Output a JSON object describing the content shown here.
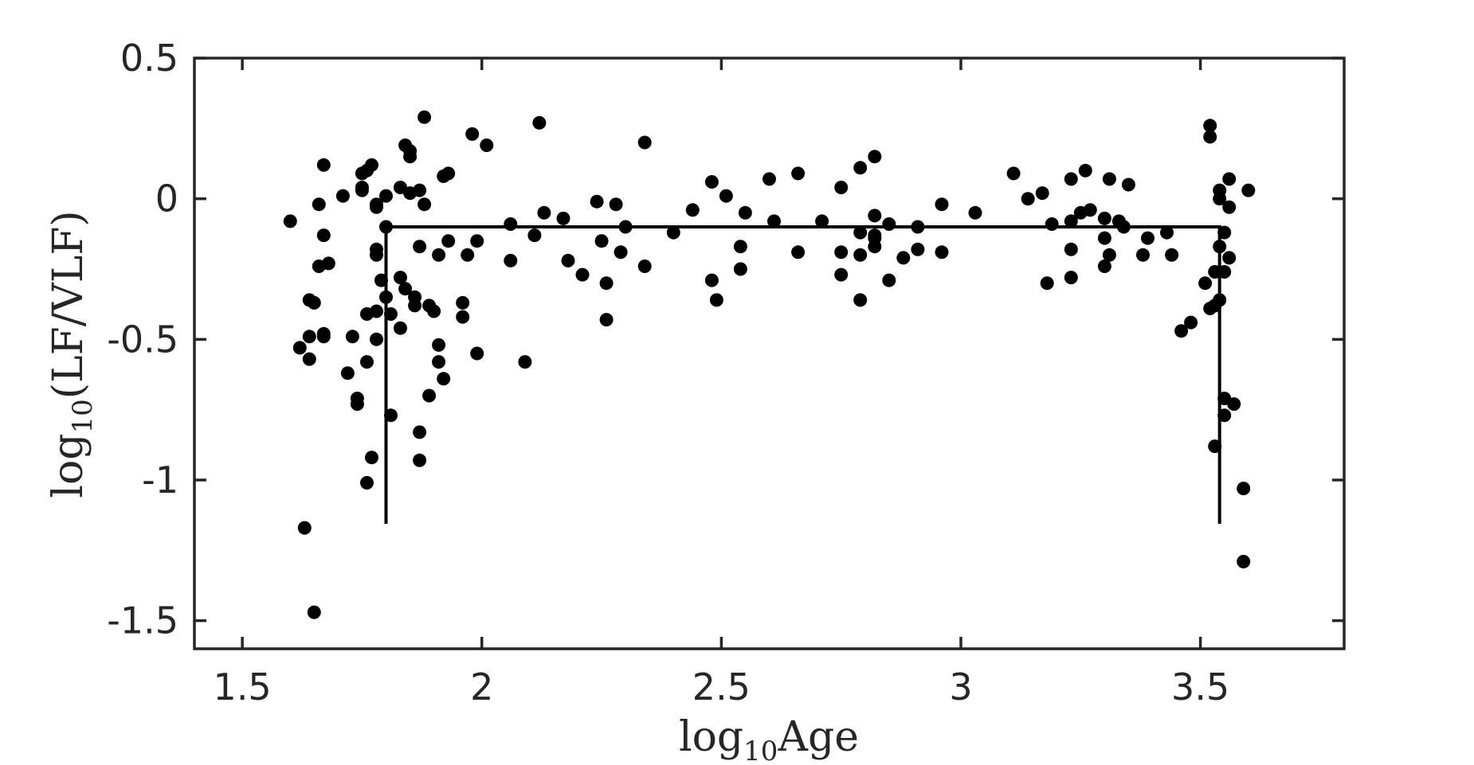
{
  "chart_data": {
    "type": "scatter",
    "title": "",
    "xlabel": {
      "base": "log",
      "sub": "10",
      "rest": "Age"
    },
    "ylabel": {
      "base": "log",
      "sub": "10",
      "rest": "(LF/VLF)"
    },
    "xlim": [
      1.4,
      3.8
    ],
    "ylim": [
      -1.6,
      0.5
    ],
    "grid": false,
    "xticks": [
      1.5,
      2,
      2.5,
      3,
      3.5
    ],
    "xtick_labels": [
      "1.5",
      "2",
      "2.5",
      "3",
      "3.5"
    ],
    "yticks": [
      0.5,
      0,
      -0.5,
      -1,
      -1.5
    ],
    "ytick_labels": [
      "0.5",
      "0",
      "-0.5",
      "-1",
      "-1.5"
    ],
    "fit_line": {
      "segments": [
        [
          [
            1.8,
            -1.15
          ],
          [
            1.8,
            -0.1
          ]
        ],
        [
          [
            1.8,
            -0.1
          ],
          [
            3.54,
            -0.1
          ]
        ],
        [
          [
            3.54,
            -0.1
          ],
          [
            3.54,
            -1.15
          ]
        ]
      ]
    },
    "points": [
      [
        1.6,
        -0.08
      ],
      [
        1.62,
        -0.53
      ],
      [
        1.63,
        -1.17
      ],
      [
        1.64,
        -0.36
      ],
      [
        1.64,
        -0.49
      ],
      [
        1.64,
        -0.57
      ],
      [
        1.65,
        -1.47
      ],
      [
        1.65,
        -0.37
      ],
      [
        1.66,
        -0.24
      ],
      [
        1.66,
        -0.02
      ],
      [
        1.67,
        0.12
      ],
      [
        1.67,
        -0.13
      ],
      [
        1.67,
        -0.48
      ],
      [
        1.67,
        -0.49
      ],
      [
        1.68,
        -0.23
      ],
      [
        1.71,
        0.01
      ],
      [
        1.72,
        -0.62
      ],
      [
        1.73,
        -0.49
      ],
      [
        1.74,
        -0.71
      ],
      [
        1.74,
        -0.73
      ],
      [
        1.75,
        0.04
      ],
      [
        1.75,
        0.03
      ],
      [
        1.75,
        0.09
      ],
      [
        1.76,
        0.1
      ],
      [
        1.76,
        -0.41
      ],
      [
        1.76,
        -0.58
      ],
      [
        1.76,
        -1.01
      ],
      [
        1.77,
        0.12
      ],
      [
        1.77,
        -0.92
      ],
      [
        1.78,
        -0.02
      ],
      [
        1.78,
        -0.03
      ],
      [
        1.78,
        -0.18
      ],
      [
        1.78,
        -0.2
      ],
      [
        1.78,
        -0.4
      ],
      [
        1.78,
        -0.5
      ],
      [
        1.79,
        -0.29
      ],
      [
        1.8,
        -0.1
      ],
      [
        1.8,
        -0.35
      ],
      [
        1.8,
        0.01
      ],
      [
        1.81,
        -0.41
      ],
      [
        1.81,
        -0.77
      ],
      [
        1.83,
        0.04
      ],
      [
        1.83,
        -0.28
      ],
      [
        1.83,
        -0.46
      ],
      [
        1.84,
        0.19
      ],
      [
        1.84,
        -0.32
      ],
      [
        1.85,
        0.17
      ],
      [
        1.85,
        0.15
      ],
      [
        1.85,
        0.02
      ],
      [
        1.86,
        -0.35
      ],
      [
        1.86,
        -0.38
      ],
      [
        1.87,
        0.03
      ],
      [
        1.87,
        -0.17
      ],
      [
        1.87,
        -0.93
      ],
      [
        1.87,
        -0.83
      ],
      [
        1.88,
        0.29
      ],
      [
        1.88,
        -0.02
      ],
      [
        1.89,
        -0.38
      ],
      [
        1.89,
        -0.7
      ],
      [
        1.9,
        -0.4
      ],
      [
        1.91,
        -0.58
      ],
      [
        1.91,
        -0.2
      ],
      [
        1.91,
        -0.52
      ],
      [
        1.92,
        -0.64
      ],
      [
        1.92,
        0.08
      ],
      [
        1.93,
        0.09
      ],
      [
        1.93,
        -0.15
      ],
      [
        1.96,
        -0.37
      ],
      [
        1.96,
        -0.42
      ],
      [
        1.97,
        -0.2
      ],
      [
        1.98,
        0.23
      ],
      [
        1.99,
        -0.15
      ],
      [
        1.99,
        -0.55
      ],
      [
        2.01,
        0.19
      ],
      [
        2.06,
        -0.22
      ],
      [
        2.06,
        -0.09
      ],
      [
        2.09,
        -0.58
      ],
      [
        2.11,
        -0.13
      ],
      [
        2.12,
        0.27
      ],
      [
        2.13,
        -0.05
      ],
      [
        2.17,
        -0.07
      ],
      [
        2.18,
        -0.22
      ],
      [
        2.21,
        -0.27
      ],
      [
        2.24,
        -0.01
      ],
      [
        2.25,
        -0.15
      ],
      [
        2.26,
        -0.43
      ],
      [
        2.26,
        -0.3
      ],
      [
        2.28,
        -0.02
      ],
      [
        2.29,
        -0.19
      ],
      [
        2.3,
        -0.1
      ],
      [
        2.34,
        0.2
      ],
      [
        2.34,
        -0.24
      ],
      [
        2.4,
        -0.12
      ],
      [
        2.44,
        -0.04
      ],
      [
        2.48,
        0.06
      ],
      [
        2.48,
        -0.29
      ],
      [
        2.49,
        -0.36
      ],
      [
        2.51,
        0.01
      ],
      [
        2.54,
        -0.17
      ],
      [
        2.54,
        -0.25
      ],
      [
        2.55,
        -0.05
      ],
      [
        2.6,
        0.07
      ],
      [
        2.61,
        -0.08
      ],
      [
        2.66,
        0.09
      ],
      [
        2.66,
        -0.19
      ],
      [
        2.71,
        -0.08
      ],
      [
        2.75,
        0.04
      ],
      [
        2.75,
        -0.19
      ],
      [
        2.75,
        -0.27
      ],
      [
        2.79,
        0.11
      ],
      [
        2.79,
        -0.12
      ],
      [
        2.79,
        -0.2
      ],
      [
        2.79,
        -0.36
      ],
      [
        2.82,
        0.15
      ],
      [
        2.82,
        -0.06
      ],
      [
        2.82,
        -0.13
      ],
      [
        2.82,
        -0.14
      ],
      [
        2.82,
        -0.17
      ],
      [
        2.85,
        -0.09
      ],
      [
        2.85,
        -0.29
      ],
      [
        2.88,
        -0.21
      ],
      [
        2.91,
        -0.1
      ],
      [
        2.91,
        -0.18
      ],
      [
        2.96,
        -0.02
      ],
      [
        2.96,
        -0.19
      ],
      [
        3.03,
        -0.05
      ],
      [
        3.11,
        0.09
      ],
      [
        3.14,
        0.0
      ],
      [
        3.17,
        0.02
      ],
      [
        3.18,
        -0.3
      ],
      [
        3.19,
        -0.09
      ],
      [
        3.23,
        0.07
      ],
      [
        3.23,
        -0.08
      ],
      [
        3.23,
        -0.18
      ],
      [
        3.23,
        -0.28
      ],
      [
        3.25,
        -0.05
      ],
      [
        3.26,
        0.1
      ],
      [
        3.27,
        -0.04
      ],
      [
        3.3,
        -0.07
      ],
      [
        3.3,
        -0.14
      ],
      [
        3.3,
        -0.24
      ],
      [
        3.31,
        0.07
      ],
      [
        3.31,
        -0.2
      ],
      [
        3.33,
        -0.08
      ],
      [
        3.34,
        -0.1
      ],
      [
        3.35,
        0.05
      ],
      [
        3.38,
        -0.2
      ],
      [
        3.39,
        -0.14
      ],
      [
        3.43,
        -0.12
      ],
      [
        3.44,
        -0.2
      ],
      [
        3.46,
        -0.47
      ],
      [
        3.48,
        -0.44
      ],
      [
        3.51,
        -0.3
      ],
      [
        3.52,
        0.22
      ],
      [
        3.52,
        0.26
      ],
      [
        3.52,
        -0.39
      ],
      [
        3.53,
        -0.38
      ],
      [
        3.53,
        -0.26
      ],
      [
        3.53,
        -0.88
      ],
      [
        3.54,
        0.03
      ],
      [
        3.54,
        -0.17
      ],
      [
        3.54,
        -0.36
      ],
      [
        3.54,
        -0.0
      ],
      [
        3.55,
        -0.12
      ],
      [
        3.55,
        -0.77
      ],
      [
        3.55,
        -0.71
      ],
      [
        3.55,
        -0.26
      ],
      [
        3.56,
        0.07
      ],
      [
        3.56,
        -0.03
      ],
      [
        3.56,
        -0.21
      ],
      [
        3.57,
        -0.73
      ],
      [
        3.59,
        -1.29
      ],
      [
        3.59,
        -1.03
      ],
      [
        3.6,
        0.03
      ]
    ]
  }
}
